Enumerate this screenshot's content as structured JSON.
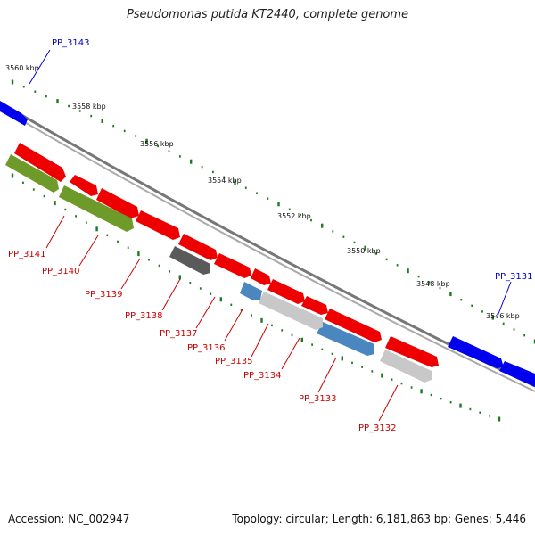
{
  "title": "Pseudomonas putida KT2440, complete genome",
  "footer": {
    "accession": "Accession: NC_002947",
    "summary": "Topology: circular; Length: 6,181,863 bp; Genes: 5,446"
  },
  "colors": {
    "backbone": "#8a8a8a",
    "tick": "#1e7a1e",
    "red_gene": "#ee0000",
    "blue_gene": "#0000ee",
    "olive_gene": "#6e9a2a",
    "dark_gray_gene": "#5a5a5a",
    "light_gray_gene": "#c8c8c8",
    "steel_blue_gene": "#4a86bf",
    "red_label": "#cc0000",
    "blue_label": "#0000cc"
  },
  "ruler": [
    {
      "label": "3560 kbp"
    },
    {
      "label": "3558 kbp"
    },
    {
      "label": "3556 kbp"
    },
    {
      "label": "3554 kbp"
    },
    {
      "label": "3552 kbp"
    },
    {
      "label": "3550 kbp"
    },
    {
      "label": "3548 kbp"
    },
    {
      "label": "3546 kbp"
    }
  ],
  "labels": [
    {
      "text": "PP_3143",
      "color": "blue"
    },
    {
      "text": "PP_3131",
      "color": "blue"
    },
    {
      "text": "PP_3141",
      "color": "red"
    },
    {
      "text": "PP_3140",
      "color": "red"
    },
    {
      "text": "PP_3139",
      "color": "red"
    },
    {
      "text": "PP_3138",
      "color": "red"
    },
    {
      "text": "PP_3137",
      "color": "red"
    },
    {
      "text": "PP_3136",
      "color": "red"
    },
    {
      "text": "PP_3135",
      "color": "red"
    },
    {
      "text": "PP_3134",
      "color": "red"
    },
    {
      "text": "PP_3133",
      "color": "red"
    },
    {
      "text": "PP_3132",
      "color": "red"
    }
  ]
}
